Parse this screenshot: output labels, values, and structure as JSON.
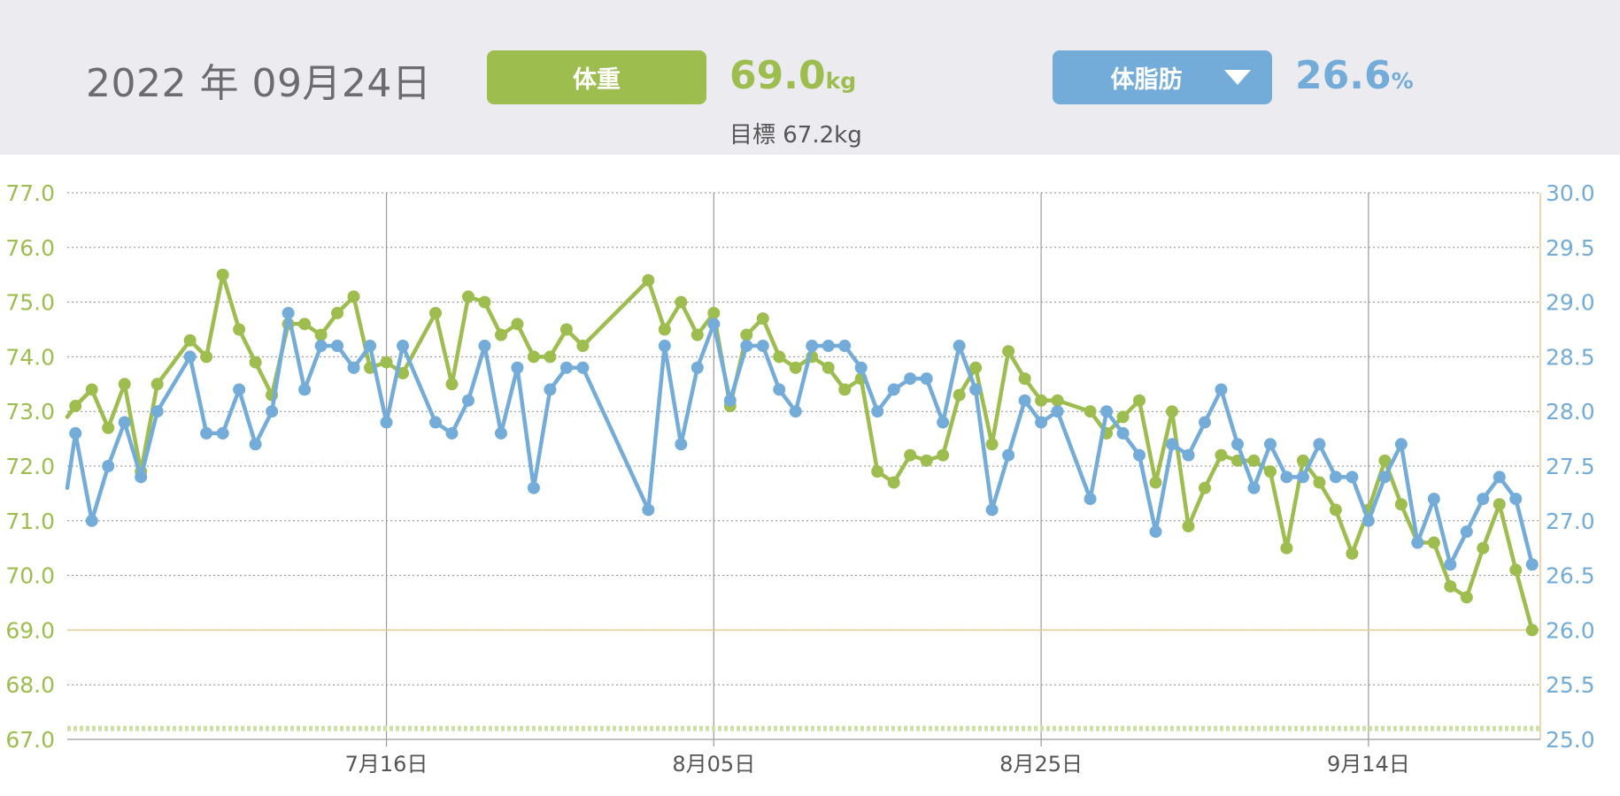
{
  "header": {
    "date": "2022 年 09月24日",
    "weight_button": "体重",
    "weight_value": "69.0",
    "weight_unit": "kg",
    "target_label": "目標 67.2kg",
    "fat_button": "体脂肪",
    "fat_value": "26.6",
    "fat_unit": "%"
  },
  "colors": {
    "weight": "#9dbd4f",
    "fat": "#74acd9",
    "header_bg": "#ebebf0",
    "baseline": "#e8c99a"
  },
  "chart_data": {
    "type": "line",
    "x_ticks": [
      {
        "label": "7月16日",
        "x": 20
      },
      {
        "label": "8月05日",
        "x": 40
      },
      {
        "label": "8月25日",
        "x": 60
      },
      {
        "label": "9月14日",
        "x": 80
      }
    ],
    "x_range": [
      0.5,
      90.5
    ],
    "y_left": {
      "range": [
        67.0,
        77.0
      ],
      "ticks": [
        "67.0",
        "68.0",
        "69.0",
        "70.0",
        "71.0",
        "72.0",
        "73.0",
        "74.0",
        "75.0",
        "76.0",
        "77.0"
      ]
    },
    "y_right": {
      "range": [
        25.0,
        30.0
      ],
      "ticks": [
        "25.0",
        "25.5",
        "26.0",
        "26.5",
        "27.0",
        "27.5",
        "28.0",
        "28.5",
        "29.0",
        "29.5",
        "30.0"
      ]
    },
    "target_line": 67.2,
    "current_line": 69.0,
    "series": [
      {
        "axis": "left",
        "points": [
          [
            0.5,
            72.9
          ],
          [
            1,
            73.1
          ],
          [
            2,
            73.4
          ],
          [
            3,
            72.7
          ],
          [
            4,
            73.5
          ],
          [
            5,
            71.9
          ],
          [
            6,
            73.5
          ],
          [
            8,
            74.3
          ],
          [
            9,
            74.0
          ],
          [
            10,
            75.5
          ],
          [
            11,
            74.5
          ],
          [
            12,
            73.9
          ],
          [
            13,
            73.3
          ],
          [
            14,
            74.6
          ],
          [
            15,
            74.6
          ],
          [
            16,
            74.4
          ],
          [
            17,
            74.8
          ],
          [
            18,
            75.1
          ],
          [
            19,
            73.8
          ],
          [
            20,
            73.9
          ],
          [
            21,
            73.7
          ],
          [
            23,
            74.8
          ],
          [
            24,
            73.5
          ],
          [
            25,
            75.1
          ],
          [
            26,
            75.0
          ],
          [
            27,
            74.4
          ],
          [
            28,
            74.6
          ],
          [
            29,
            74.0
          ],
          [
            30,
            74.0
          ],
          [
            31,
            74.5
          ],
          [
            32,
            74.2
          ],
          [
            36,
            75.4
          ],
          [
            37,
            74.5
          ],
          [
            38,
            75.0
          ],
          [
            39,
            74.4
          ],
          [
            40,
            74.8
          ],
          [
            41,
            73.1
          ],
          [
            42,
            74.4
          ],
          [
            43,
            74.7
          ],
          [
            44,
            74.0
          ],
          [
            45,
            73.8
          ],
          [
            46,
            74.0
          ],
          [
            47,
            73.8
          ],
          [
            48,
            73.4
          ],
          [
            49,
            73.6
          ],
          [
            50,
            71.9
          ],
          [
            51,
            71.7
          ],
          [
            52,
            72.2
          ],
          [
            53,
            72.1
          ],
          [
            54,
            72.2
          ],
          [
            55,
            73.3
          ],
          [
            56,
            73.8
          ],
          [
            57,
            72.4
          ],
          [
            58,
            74.1
          ],
          [
            59,
            73.6
          ],
          [
            60,
            73.2
          ],
          [
            61,
            73.2
          ],
          [
            63,
            73.0
          ],
          [
            64,
            72.6
          ],
          [
            65,
            72.9
          ],
          [
            66,
            73.2
          ],
          [
            67,
            71.7
          ],
          [
            68,
            73.0
          ],
          [
            69,
            70.9
          ],
          [
            70,
            71.6
          ],
          [
            71,
            72.2
          ],
          [
            72,
            72.1
          ],
          [
            73,
            72.1
          ],
          [
            74,
            71.9
          ],
          [
            75,
            70.5
          ],
          [
            76,
            72.1
          ],
          [
            77,
            71.7
          ],
          [
            78,
            71.2
          ],
          [
            79,
            70.4
          ],
          [
            80,
            71.2
          ],
          [
            81,
            72.1
          ],
          [
            82,
            71.3
          ],
          [
            83,
            70.6
          ],
          [
            84,
            70.6
          ],
          [
            85,
            69.8
          ],
          [
            86,
            69.6
          ],
          [
            87,
            70.5
          ],
          [
            88,
            71.3
          ],
          [
            89,
            70.1
          ],
          [
            90,
            69.0
          ]
        ]
      },
      {
        "axis": "right",
        "points": [
          [
            0.5,
            27.3
          ],
          [
            1,
            27.8
          ],
          [
            2,
            27.0
          ],
          [
            3,
            27.5
          ],
          [
            4,
            27.9
          ],
          [
            5,
            27.4
          ],
          [
            6,
            28.0
          ],
          [
            8,
            28.5
          ],
          [
            9,
            27.8
          ],
          [
            10,
            27.8
          ],
          [
            11,
            28.2
          ],
          [
            12,
            27.7
          ],
          [
            13,
            28.0
          ],
          [
            14,
            28.9
          ],
          [
            15,
            28.2
          ],
          [
            16,
            28.6
          ],
          [
            17,
            28.6
          ],
          [
            18,
            28.4
          ],
          [
            19,
            28.6
          ],
          [
            20,
            27.9
          ],
          [
            21,
            28.6
          ],
          [
            23,
            27.9
          ],
          [
            24,
            27.8
          ],
          [
            25,
            28.1
          ],
          [
            26,
            28.6
          ],
          [
            27,
            27.8
          ],
          [
            28,
            28.4
          ],
          [
            29,
            27.3
          ],
          [
            30,
            28.2
          ],
          [
            31,
            28.4
          ],
          [
            32,
            28.4
          ],
          [
            36,
            27.1
          ],
          [
            37,
            28.6
          ],
          [
            38,
            27.7
          ],
          [
            39,
            28.4
          ],
          [
            40,
            28.8
          ],
          [
            41,
            28.1
          ],
          [
            42,
            28.6
          ],
          [
            43,
            28.6
          ],
          [
            44,
            28.2
          ],
          [
            45,
            28.0
          ],
          [
            46,
            28.6
          ],
          [
            47,
            28.6
          ],
          [
            48,
            28.6
          ],
          [
            49,
            28.4
          ],
          [
            50,
            28.0
          ],
          [
            51,
            28.2
          ],
          [
            52,
            28.3
          ],
          [
            53,
            28.3
          ],
          [
            54,
            27.9
          ],
          [
            55,
            28.6
          ],
          [
            56,
            28.2
          ],
          [
            57,
            27.1
          ],
          [
            58,
            27.6
          ],
          [
            59,
            28.1
          ],
          [
            60,
            27.9
          ],
          [
            61,
            28.0
          ],
          [
            63,
            27.2
          ],
          [
            64,
            28.0
          ],
          [
            65,
            27.8
          ],
          [
            66,
            27.6
          ],
          [
            67,
            26.9
          ],
          [
            68,
            27.7
          ],
          [
            69,
            27.6
          ],
          [
            70,
            27.9
          ],
          [
            71,
            28.2
          ],
          [
            72,
            27.7
          ],
          [
            73,
            27.3
          ],
          [
            74,
            27.7
          ],
          [
            75,
            27.4
          ],
          [
            76,
            27.4
          ],
          [
            77,
            27.7
          ],
          [
            78,
            27.4
          ],
          [
            79,
            27.4
          ],
          [
            80,
            27.0
          ],
          [
            81,
            27.4
          ],
          [
            82,
            27.7
          ],
          [
            83,
            26.8
          ],
          [
            84,
            27.2
          ],
          [
            85,
            26.6
          ],
          [
            86,
            26.9
          ],
          [
            87,
            27.2
          ],
          [
            88,
            27.4
          ],
          [
            89,
            27.2
          ],
          [
            90,
            26.6
          ]
        ]
      }
    ]
  }
}
